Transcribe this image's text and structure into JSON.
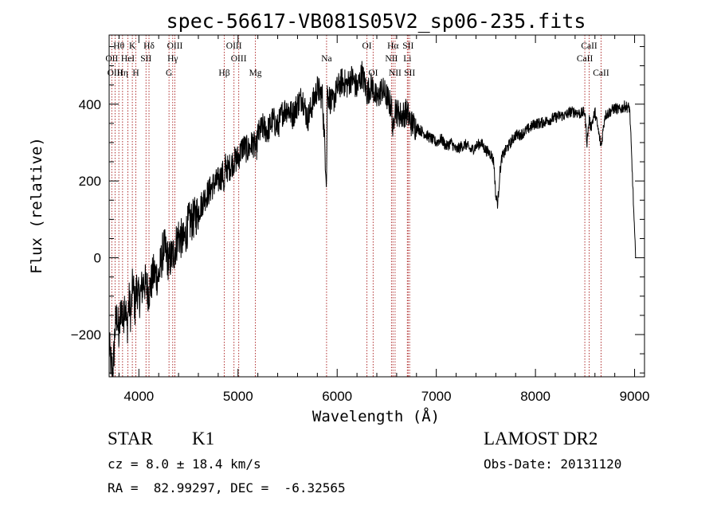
{
  "chart_data": {
    "type": "line",
    "title": "spec-56617-VB081S05V2_sp06-235.fits",
    "xlabel": "Wavelength (Å)",
    "ylabel": "Flux (relative)",
    "xlim": [
      3700,
      9100
    ],
    "ylim": [
      -310,
      580
    ],
    "x_ticks": [
      4000,
      5000,
      6000,
      7000,
      8000,
      9000
    ],
    "x_tick_labels": [
      "4000",
      "5000",
      "6000",
      "7000",
      "8000",
      "9000"
    ],
    "y_ticks": [
      -200,
      0,
      200,
      400
    ],
    "y_tick_labels": [
      "−200",
      "0",
      "200",
      "400"
    ],
    "series": [
      {
        "x": [
          3700,
          3720,
          3740,
          3760,
          3780,
          3800,
          3820,
          3840,
          3860,
          3880,
          3900,
          3920,
          3940,
          3960,
          3980,
          4000,
          4050,
          4100,
          4150,
          4200,
          4250,
          4300,
          4350,
          4400,
          4450,
          4500,
          4550,
          4600,
          4650,
          4700,
          4750,
          4800,
          4850,
          4861,
          4870,
          4900,
          4950,
          5000,
          5050,
          5100,
          5150,
          5183,
          5200,
          5250,
          5300,
          5350,
          5400,
          5450,
          5500,
          5550,
          5600,
          5650,
          5700,
          5750,
          5800,
          5850,
          5893,
          5900,
          5950,
          6000,
          6050,
          6100,
          6150,
          6200,
          6250,
          6300,
          6350,
          6400,
          6450,
          6500,
          6550,
          6563,
          6580,
          6600,
          6650,
          6700,
          6750,
          6800,
          6850,
          6900,
          6950,
          7000,
          7050,
          7100,
          7150,
          7200,
          7250,
          7300,
          7350,
          7400,
          7450,
          7500,
          7550,
          7580,
          7600,
          7620,
          7640,
          7660,
          7700,
          7750,
          7800,
          7850,
          7900,
          7950,
          8000,
          8050,
          8100,
          8150,
          8200,
          8250,
          8300,
          8350,
          8400,
          8450,
          8498,
          8520,
          8542,
          8560,
          8600,
          8662,
          8700,
          8750,
          8800,
          8850,
          8900,
          8950,
          8980,
          9000,
          9010
        ],
        "values": [
          -230,
          -280,
          -300,
          -180,
          -150,
          -210,
          -120,
          -170,
          -100,
          -190,
          -110,
          -150,
          -60,
          -130,
          -70,
          -110,
          -60,
          -90,
          -40,
          -50,
          30,
          -10,
          10,
          60,
          40,
          90,
          100,
          120,
          150,
          170,
          190,
          200,
          220,
          170,
          240,
          230,
          250,
          260,
          290,
          280,
          300,
          280,
          320,
          340,
          330,
          360,
          340,
          380,
          390,
          370,
          400,
          420,
          360,
          400,
          440,
          420,
          200,
          430,
          400,
          440,
          460,
          450,
          470,
          440,
          480,
          430,
          450,
          410,
          440,
          420,
          390,
          320,
          400,
          380,
          370,
          380,
          350,
          340,
          330,
          320,
          310,
          300,
          310,
          290,
          300,
          280,
          290,
          295,
          280,
          290,
          300,
          280,
          270,
          250,
          160,
          140,
          220,
          260,
          280,
          300,
          320,
          320,
          330,
          340,
          350,
          350,
          355,
          360,
          365,
          370,
          370,
          380,
          380,
          375,
          380,
          300,
          360,
          340,
          380,
          290,
          370,
          380,
          390,
          385,
          395,
          390,
          200,
          60,
          0
        ]
      }
    ],
    "lines": [
      {
        "label": "Hθ",
        "x": 3798,
        "row": 0
      },
      {
        "label": "OII",
        "x": 3727,
        "row": 1
      },
      {
        "label": "OIII",
        "x": 3760,
        "row": 2
      },
      {
        "label": "Hη",
        "x": 3835,
        "row": 2
      },
      {
        "label": "HeI",
        "x": 3889,
        "row": 1
      },
      {
        "label": "K",
        "x": 3934,
        "row": 0
      },
      {
        "label": "H",
        "x": 3969,
        "row": 2
      },
      {
        "label": "SII",
        "x": 4072,
        "row": 1
      },
      {
        "label": "Hδ",
        "x": 4102,
        "row": 0
      },
      {
        "label": "OIII",
        "x": 4363,
        "row": 0
      },
      {
        "label": "Hγ",
        "x": 4341,
        "row": 1
      },
      {
        "label": "G",
        "x": 4304,
        "row": 2
      },
      {
        "label": "OIII",
        "x": 4959,
        "row": 0
      },
      {
        "label": "OIII",
        "x": 5007,
        "row": 1
      },
      {
        "label": "Hβ",
        "x": 4861,
        "row": 2
      },
      {
        "label": "Mg",
        "x": 5175,
        "row": 2
      },
      {
        "label": "Na",
        "x": 5893,
        "row": 1
      },
      {
        "label": "OI",
        "x": 6300,
        "row": 0
      },
      {
        "label": "OI",
        "x": 6363,
        "row": 2
      },
      {
        "label": "Hα",
        "x": 6563,
        "row": 0
      },
      {
        "label": "NII",
        "x": 6548,
        "row": 1
      },
      {
        "label": "NII",
        "x": 6584,
        "row": 2
      },
      {
        "label": "SII",
        "x": 6716,
        "row": 0
      },
      {
        "label": "Li",
        "x": 6708,
        "row": 1
      },
      {
        "label": "SII",
        "x": 6731,
        "row": 2
      },
      {
        "label": "CaII",
        "x": 8542,
        "row": 0
      },
      {
        "label": "CaII",
        "x": 8498,
        "row": 1
      },
      {
        "label": "CaII",
        "x": 8662,
        "row": 2
      }
    ]
  },
  "footer": {
    "object_class": "STAR",
    "subclass": "K1",
    "redshift": "cz = 8.0 ± 18.4 km/s",
    "coords": "RA =  82.99297, DEC =  -6.32565",
    "survey": "LAMOST DR2",
    "obs_date": "Obs-Date: 20131120"
  }
}
